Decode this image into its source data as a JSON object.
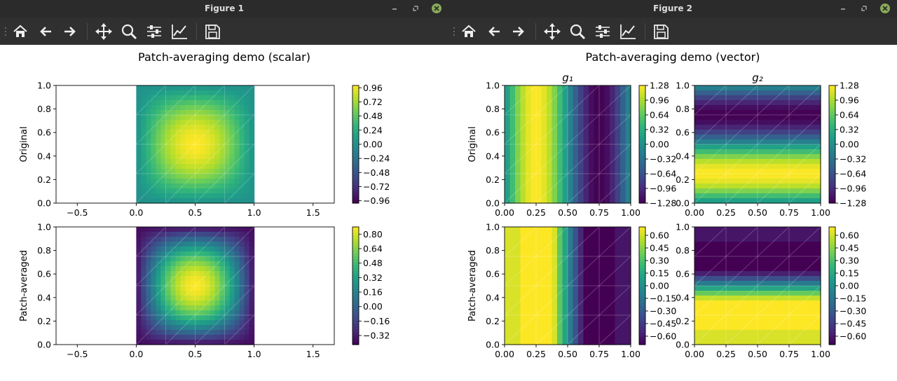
{
  "windows": [
    {
      "id": "w1",
      "title": "Figure 1",
      "suptitle": "Patch-averaging demo (scalar)",
      "icons": [
        "home-icon",
        "back-arrow-icon",
        "forward-arrow-icon",
        "pan-icon",
        "zoom-icon",
        "configure-subplots-icon",
        "edit-axes-icon",
        "save-icon"
      ],
      "window_controls": [
        "minimize-icon",
        "restore-icon",
        "close-icon"
      ]
    },
    {
      "id": "w2",
      "title": "Figure 2",
      "suptitle": "Patch-averaging demo (vector)",
      "icons": [
        "home-icon",
        "back-arrow-icon",
        "forward-arrow-icon",
        "pan-icon",
        "zoom-icon",
        "configure-subplots-icon",
        "edit-axes-icon",
        "save-icon"
      ],
      "window_controls": [
        "minimize-icon",
        "restore-icon",
        "close-icon"
      ]
    }
  ],
  "colors": {
    "titlebar": "#2b2b2b",
    "toolbar": "#303030",
    "close": "#8aab5a"
  },
  "chart_data": [
    {
      "type": "heatmap",
      "title": "",
      "ylabel": "Original",
      "xlim": [
        -0.68,
        1.68
      ],
      "ylim": [
        0,
        1
      ],
      "xticks": [
        "−0.5",
        "0.0",
        "0.5",
        "1.0",
        "1.5"
      ],
      "yticks": [
        "0.0",
        "0.2",
        "0.4",
        "0.6",
        "0.8",
        "1.0"
      ],
      "field": "sin(pi x) sin(pi y)",
      "colorbar_ticks": [
        "0.96",
        "0.72",
        "0.48",
        "0.24",
        "0.00",
        "−0.24",
        "−0.48",
        "−0.72",
        "−0.96"
      ],
      "colorbar_range": [
        -1.0,
        1.0
      ]
    },
    {
      "type": "heatmap",
      "title": "",
      "ylabel": "Patch-averaged",
      "xlim": [
        -0.68,
        1.68
      ],
      "ylim": [
        0,
        1
      ],
      "xticks": [
        "−0.5",
        "0.0",
        "0.5",
        "1.0",
        "1.5"
      ],
      "yticks": [
        "0.0",
        "0.2",
        "0.4",
        "0.6",
        "0.8",
        "1.0"
      ],
      "field": "patch-averaged sin(pi x) sin(pi y)",
      "colorbar_ticks": [
        "0.80",
        "0.64",
        "0.48",
        "0.32",
        "0.16",
        "0.00",
        "−0.16",
        "−0.32"
      ],
      "colorbar_range": [
        -0.42,
        0.88
      ]
    },
    {
      "type": "heatmap",
      "title": "g₁",
      "ylabel": "Original",
      "xlim": [
        0,
        1
      ],
      "ylim": [
        0,
        1
      ],
      "xticks": [
        "0.00",
        "0.25",
        "0.50",
        "0.75",
        "1.00"
      ],
      "yticks": [
        "0.0",
        "0.2",
        "0.4",
        "0.6",
        "0.8",
        "1.0"
      ],
      "field": "cos-like in x, peak at 0.25, trough at 0.75",
      "colorbar_ticks": [
        "1.28",
        "0.96",
        "0.64",
        "0.32",
        "0.00",
        "−0.32",
        "−0.64",
        "−0.96",
        "−1.28"
      ],
      "colorbar_range": [
        -1.28,
        1.28
      ]
    },
    {
      "type": "heatmap",
      "title": "g₂",
      "ylabel": "",
      "xlim": [
        0,
        1
      ],
      "ylim": [
        0,
        1
      ],
      "xticks": [
        "0.00",
        "0.25",
        "0.50",
        "0.75",
        "1.00"
      ],
      "yticks": [
        "0.0",
        "0.2",
        "0.4",
        "0.6",
        "0.8",
        "1.0"
      ],
      "field": "cos-like in y, peak at 0.25, trough at 0.75",
      "colorbar_ticks": [
        "1.28",
        "0.96",
        "0.64",
        "0.32",
        "0.00",
        "−0.32",
        "−0.64",
        "−0.96",
        "−1.28"
      ],
      "colorbar_range": [
        -1.28,
        1.28
      ]
    },
    {
      "type": "heatmap",
      "title": "",
      "ylabel": "Patch-averaged",
      "xlim": [
        0,
        1
      ],
      "ylim": [
        0,
        1
      ],
      "xticks": [
        "0.00",
        "0.25",
        "0.50",
        "0.75",
        "1.00"
      ],
      "yticks": [
        "0.0",
        "0.2",
        "0.4",
        "0.6",
        "0.8",
        "1.0"
      ],
      "field": "patch-averaged g1",
      "colorbar_ticks": [
        "0.60",
        "0.45",
        "0.30",
        "0.15",
        "0.00",
        "−0.15",
        "−0.30",
        "−0.45",
        "−0.60"
      ],
      "colorbar_range": [
        -0.7,
        0.7
      ]
    },
    {
      "type": "heatmap",
      "title": "",
      "ylabel": "",
      "xlim": [
        0,
        1
      ],
      "ylim": [
        0,
        1
      ],
      "xticks": [
        "0.00",
        "0.25",
        "0.50",
        "0.75",
        "1.00"
      ],
      "yticks": [
        "0.0",
        "0.2",
        "0.4",
        "0.6",
        "0.8",
        "1.0"
      ],
      "field": "patch-averaged g2",
      "colorbar_ticks": [
        "0.60",
        "0.45",
        "0.30",
        "0.15",
        "0.00",
        "−0.15",
        "−0.30",
        "−0.45",
        "−0.60"
      ],
      "colorbar_range": [
        -0.7,
        0.7
      ]
    }
  ]
}
